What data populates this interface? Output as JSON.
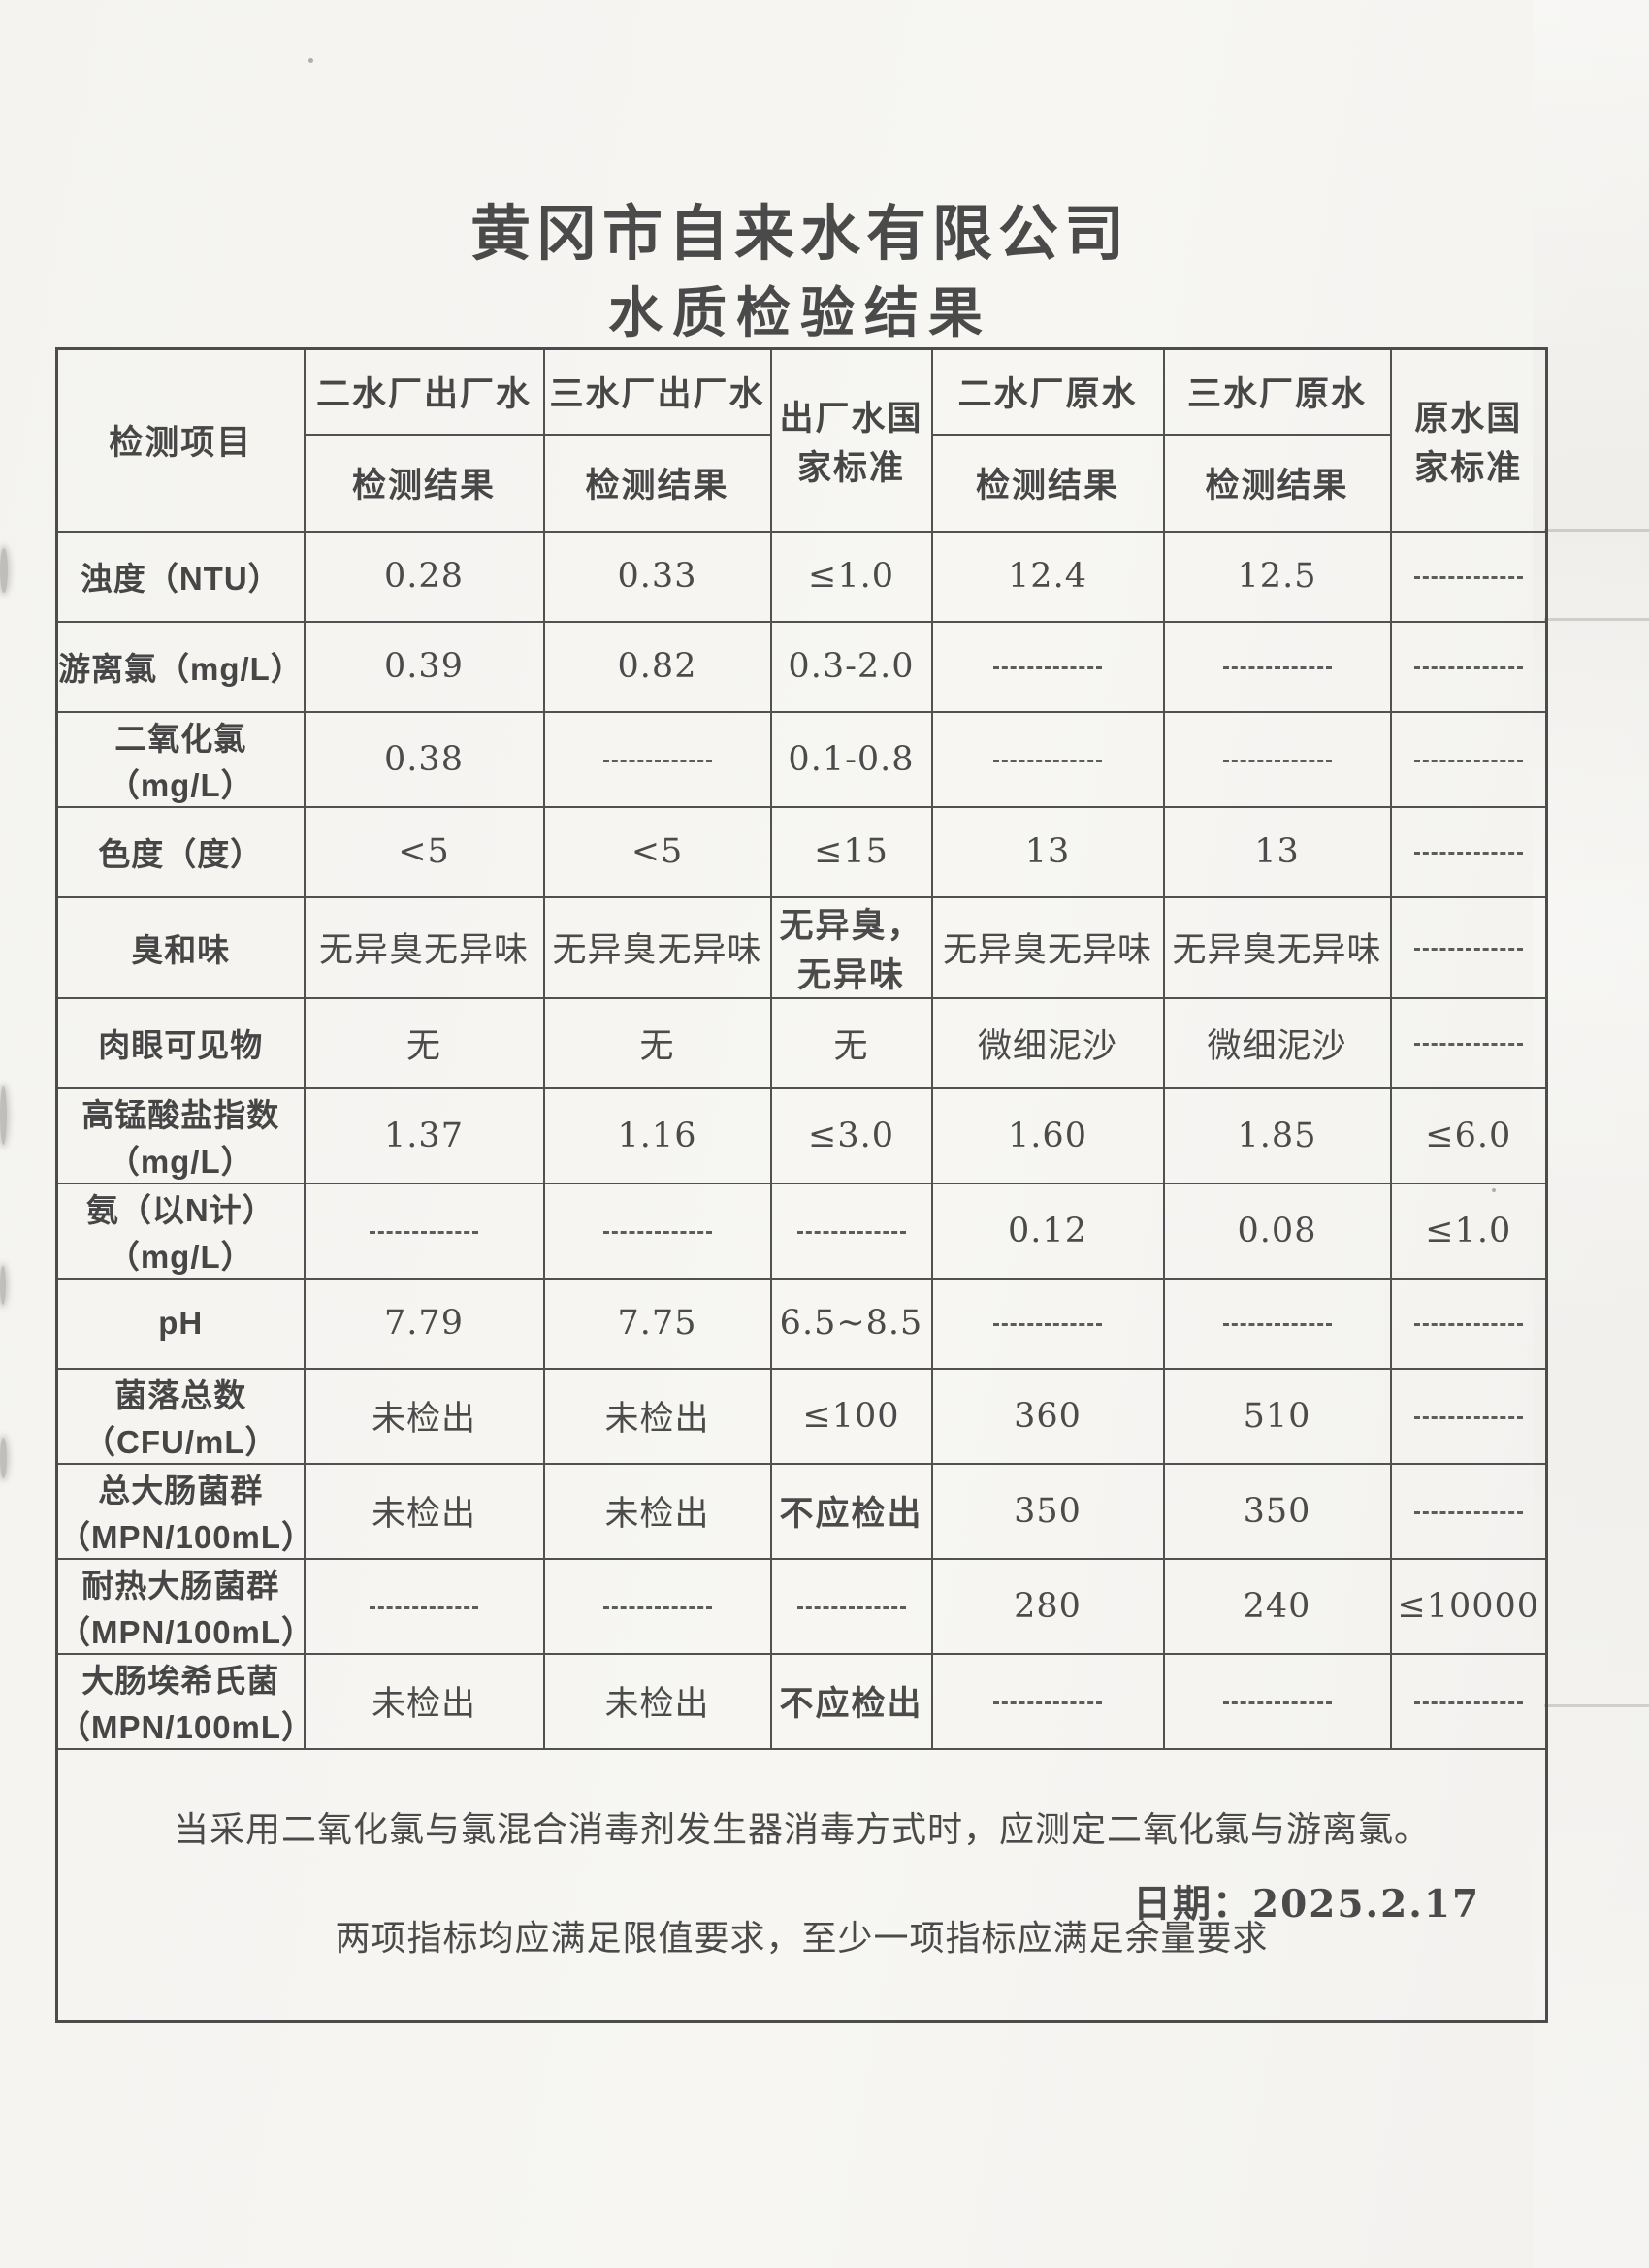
{
  "page": {
    "title_line1": "黄冈市自来水有限公司",
    "title_line2": "水质检验结果",
    "date_label": "日期：2025.2.17"
  },
  "table": {
    "header": {
      "item_col": "检测项目",
      "result_label": "检测结果",
      "col_groups": [
        "二水厂出厂水",
        "三水厂出厂水",
        "出厂水国\n家标准",
        "二水厂原水",
        "三水厂原水",
        "原水国\n家标准"
      ]
    },
    "rows": [
      {
        "label": "浊度（NTU）",
        "cells": [
          "0.28",
          "0.33",
          "≤1.0",
          "12.4",
          "12.5",
          "———"
        ]
      },
      {
        "label": "游离氯（mg/L）",
        "cells": [
          "0.39",
          "0.82",
          "0.3-2.0",
          "———",
          "———",
          "———"
        ]
      },
      {
        "label": "二氧化氯\n（mg/L）",
        "cells": [
          "0.38",
          "———",
          "0.1-0.8",
          "———",
          "———",
          "———"
        ]
      },
      {
        "label": "色度（度）",
        "cells": [
          "<5",
          "<5",
          "≤15",
          "13",
          "13",
          "———"
        ]
      },
      {
        "label": "臭和味",
        "cells": [
          "无异臭无异味",
          "无异臭无异味",
          {
            "text": "无异臭，\n无异味",
            "bold": true
          },
          "无异臭无异味",
          "无异臭无异味",
          "———"
        ]
      },
      {
        "label": "肉眼可见物",
        "cells": [
          "无",
          "无",
          "无",
          "微细泥沙",
          "微细泥沙",
          "———"
        ]
      },
      {
        "label": "高锰酸盐指数\n（mg/L）",
        "cells": [
          "1.37",
          "1.16",
          "≤3.0",
          "1.60",
          "1.85",
          "≤6.0"
        ]
      },
      {
        "label": "氨（以N计）\n（mg/L）",
        "cells": [
          "———",
          "———",
          "———",
          "0.12",
          "0.08",
          "≤1.0"
        ]
      },
      {
        "label": "pH",
        "cells": [
          "7.79",
          "7.75",
          "6.5~8.5",
          "———",
          "———",
          "———"
        ]
      },
      {
        "label": "菌落总数\n（CFU/mL）",
        "cells": [
          "未检出",
          "未检出",
          "≤100",
          "360",
          "510",
          "———"
        ]
      },
      {
        "label": "总大肠菌群\n（MPN/100mL）",
        "cells": [
          "未检出",
          "未检出",
          {
            "text": "不应检出",
            "bold": true
          },
          "350",
          "350",
          "———"
        ]
      },
      {
        "label": "耐热大肠菌群\n（MPN/100mL）",
        "cells": [
          "———",
          "———",
          "———",
          "280",
          "240",
          "≤10000"
        ]
      },
      {
        "label": "大肠埃希氏菌\n（MPN/100mL）",
        "cells": [
          "未检出",
          "未检出",
          {
            "text": "不应检出",
            "bold": true
          },
          "———",
          "———",
          "———"
        ]
      }
    ],
    "note_line1": "当采用二氧化氯与氯混合消毒剂发生器消毒方式时，应测定二氧化氯与游离氯。",
    "note_line2": "两项指标均应满足限值要求，至少一项指标应满足余量要求"
  }
}
